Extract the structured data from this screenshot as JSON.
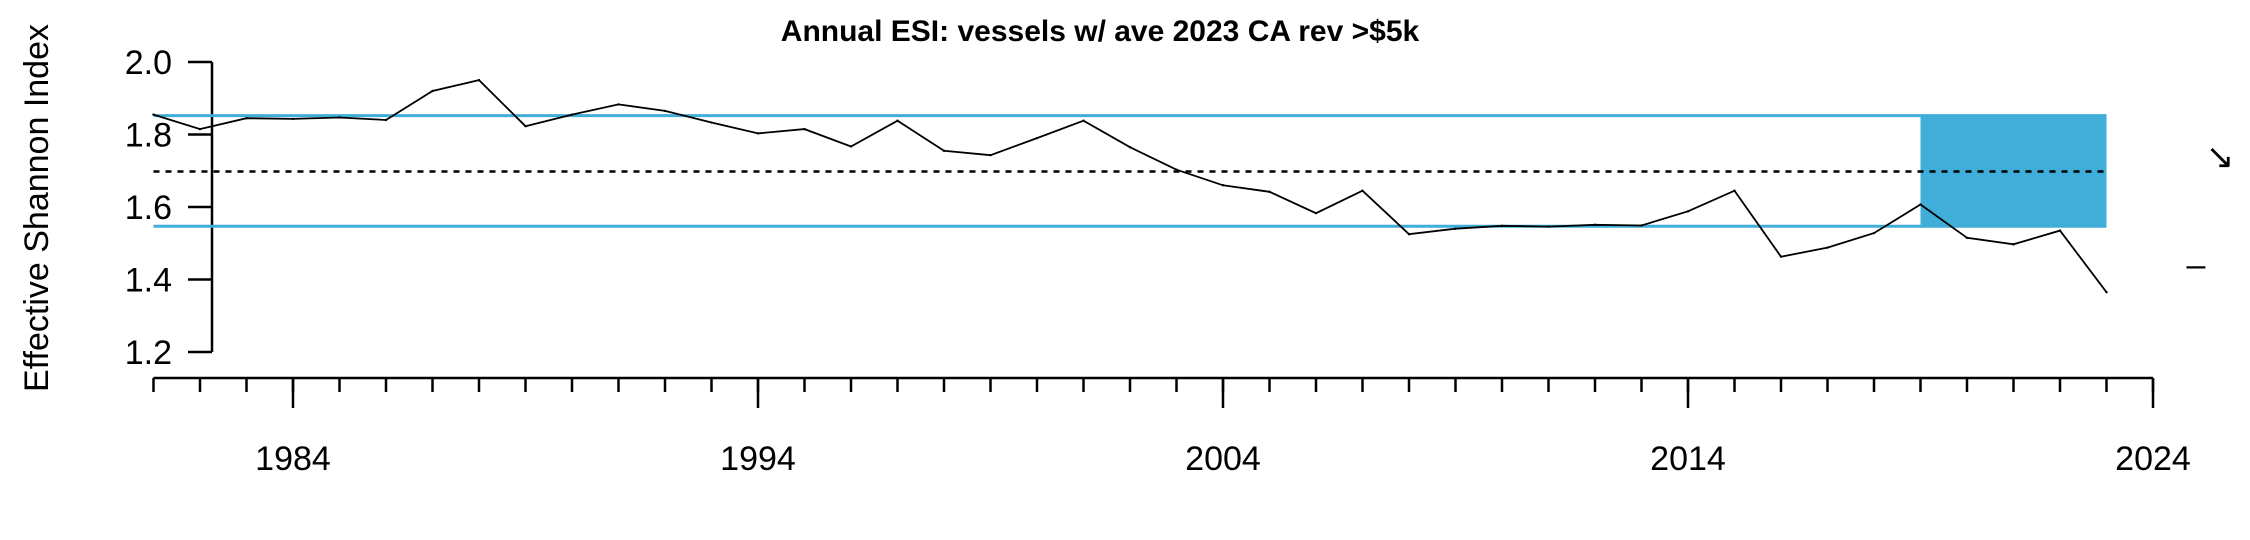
{
  "chart_data": {
    "type": "line",
    "title": "Annual ESI: vessels w/ ave 2023 CA rev >$5k",
    "xlabel": "",
    "ylabel": "Effective Shannon Index",
    "xlim": [
      1980,
      2024
    ],
    "ylim": [
      1.2,
      2.0
    ],
    "x_tick_labels": [
      "1984",
      "1994",
      "2004",
      "2014",
      "2024"
    ],
    "y_tick_labels": [
      "1.2",
      "1.4",
      "1.6",
      "1.8",
      "2.0"
    ],
    "grid": false,
    "series": [
      {
        "x": [
          1981,
          1982,
          1983,
          1984,
          1985,
          1986,
          1987,
          1988,
          1989,
          1990,
          1991,
          1992,
          1993,
          1994,
          1995,
          1996,
          1997,
          1998,
          1999,
          2000,
          2001,
          2002,
          2003,
          2004,
          2005,
          2006,
          2007,
          2008,
          2009,
          2010,
          2011,
          2012,
          2013,
          2014,
          2015,
          2016,
          2017,
          2018,
          2019,
          2020,
          2021,
          2022,
          2023
        ],
        "values": [
          1.855,
          1.815,
          1.845,
          1.843,
          1.847,
          1.84,
          1.92,
          1.95,
          1.823,
          1.855,
          1.883,
          1.865,
          1.833,
          1.803,
          1.815,
          1.767,
          1.838,
          1.755,
          1.743,
          1.79,
          1.838,
          1.765,
          1.703,
          1.66,
          1.642,
          1.583,
          1.645,
          1.525,
          1.54,
          1.548,
          1.546,
          1.551,
          1.549,
          1.588,
          1.645,
          1.463,
          1.488,
          1.528,
          1.607,
          1.515,
          1.497,
          1.535,
          1.365
        ],
        "color": "#000000"
      }
    ],
    "reference_lines": {
      "mean": 1.698,
      "upper_sd": 1.852,
      "lower_sd": 1.547,
      "sd_color": "#41AEDA",
      "mean_style": "dashed"
    },
    "highlight_band": {
      "x_start": 2019,
      "x_end": 2023,
      "y_low": 1.547,
      "y_high": 1.852,
      "color": "#41AEDA"
    },
    "trend_indicators": {
      "trend": "↘",
      "mean": "–"
    }
  }
}
